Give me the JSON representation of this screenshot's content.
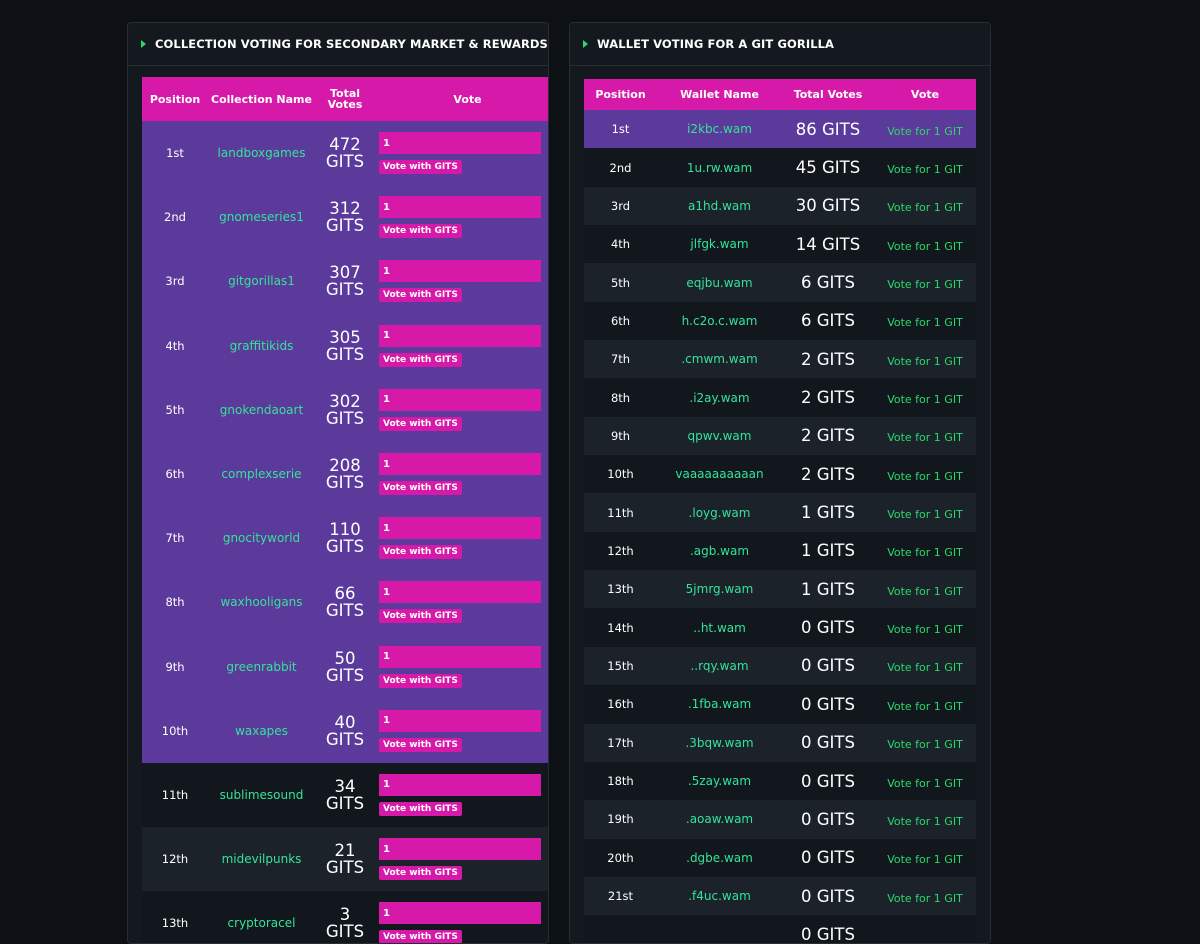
{
  "left_panel": {
    "title": "COLLECTION VOTING FOR SECONDARY MARKET & REWARDS",
    "headers": [
      "Position",
      "Collection Name",
      "Total Votes",
      "Vote"
    ],
    "rows": [
      {
        "position": "1st",
        "name": "landboxgames",
        "votes": "472",
        "unit": "GITS",
        "input": "1",
        "button": "Vote with GITS"
      },
      {
        "position": "2nd",
        "name": "gnomeseries1",
        "votes": "312",
        "unit": "GITS",
        "input": "1",
        "button": "Vote with GITS"
      },
      {
        "position": "3rd",
        "name": "gitgorillas1",
        "votes": "307",
        "unit": "GITS",
        "input": "1",
        "button": "Vote with GITS"
      },
      {
        "position": "4th",
        "name": "graffitikids",
        "votes": "305",
        "unit": "GITS",
        "input": "1",
        "button": "Vote with GITS"
      },
      {
        "position": "5th",
        "name": "gnokendaoart",
        "votes": "302",
        "unit": "GITS",
        "input": "1",
        "button": "Vote with GITS"
      },
      {
        "position": "6th",
        "name": "complexserie",
        "votes": "208",
        "unit": "GITS",
        "input": "1",
        "button": "Vote with GITS"
      },
      {
        "position": "7th",
        "name": "gnocityworld",
        "votes": "110",
        "unit": "GITS",
        "input": "1",
        "button": "Vote with GITS"
      },
      {
        "position": "8th",
        "name": "waxhooligans",
        "votes": "66",
        "unit": "GITS",
        "input": "1",
        "button": "Vote with GITS"
      },
      {
        "position": "9th",
        "name": "greenrabbit",
        "votes": "50",
        "unit": "GITS",
        "input": "1",
        "button": "Vote with GITS"
      },
      {
        "position": "10th",
        "name": "waxapes",
        "votes": "40",
        "unit": "GITS",
        "input": "1",
        "button": "Vote with GITS"
      },
      {
        "position": "11th",
        "name": "sublimesound",
        "votes": "34",
        "unit": "GITS",
        "input": "1",
        "button": "Vote with GITS"
      },
      {
        "position": "12th",
        "name": "midevilpunks",
        "votes": "21",
        "unit": "GITS",
        "input": "1",
        "button": "Vote with GITS"
      },
      {
        "position": "13th",
        "name": "cryptoracel",
        "votes": "3",
        "unit": "GITS",
        "input": "1",
        "button": "Vote with GITS"
      }
    ]
  },
  "right_panel": {
    "title": "WALLET VOTING FOR A GIT GORILLA",
    "headers": [
      "Position",
      "Wallet Name",
      "Total Votes",
      "Vote"
    ],
    "rows": [
      {
        "position": "1st",
        "name": "i2kbc.wam",
        "votes": "86 GITS",
        "action": "Vote for 1 GIT"
      },
      {
        "position": "2nd",
        "name": "1u.rw.wam",
        "votes": "45 GITS",
        "action": "Vote for 1 GIT"
      },
      {
        "position": "3rd",
        "name": "a1hd.wam",
        "votes": "30 GITS",
        "action": "Vote for 1 GIT"
      },
      {
        "position": "4th",
        "name": "jlfgk.wam",
        "votes": "14 GITS",
        "action": "Vote for 1 GIT"
      },
      {
        "position": "5th",
        "name": "eqjbu.wam",
        "votes": "6 GITS",
        "action": "Vote for 1 GIT"
      },
      {
        "position": "6th",
        "name": "h.c2o.c.wam",
        "votes": "6 GITS",
        "action": "Vote for 1 GIT"
      },
      {
        "position": "7th",
        "name": ".cmwm.wam",
        "votes": "2 GITS",
        "action": "Vote for 1 GIT"
      },
      {
        "position": "8th",
        "name": ".i2ay.wam",
        "votes": "2 GITS",
        "action": "Vote for 1 GIT"
      },
      {
        "position": "9th",
        "name": "qpwv.wam",
        "votes": "2 GITS",
        "action": "Vote for 1 GIT"
      },
      {
        "position": "10th",
        "name": "vaaaaaaaaaan",
        "votes": "2 GITS",
        "action": "Vote for 1 GIT"
      },
      {
        "position": "11th",
        "name": ".loyg.wam",
        "votes": "1 GITS",
        "action": "Vote for 1 GIT"
      },
      {
        "position": "12th",
        "name": ".agb.wam",
        "votes": "1 GITS",
        "action": "Vote for 1 GIT"
      },
      {
        "position": "13th",
        "name": "5jmrg.wam",
        "votes": "1 GITS",
        "action": "Vote for 1 GIT"
      },
      {
        "position": "14th",
        "name": "..ht.wam",
        "votes": "0 GITS",
        "action": "Vote for 1 GIT"
      },
      {
        "position": "15th",
        "name": "..rqy.wam",
        "votes": "0 GITS",
        "action": "Vote for 1 GIT"
      },
      {
        "position": "16th",
        "name": ".1fba.wam",
        "votes": "0 GITS",
        "action": "Vote for 1 GIT"
      },
      {
        "position": "17th",
        "name": ".3bqw.wam",
        "votes": "0 GITS",
        "action": "Vote for 1 GIT"
      },
      {
        "position": "18th",
        "name": ".5zay.wam",
        "votes": "0 GITS",
        "action": "Vote for 1 GIT"
      },
      {
        "position": "19th",
        "name": ".aoaw.wam",
        "votes": "0 GITS",
        "action": "Vote for 1 GIT"
      },
      {
        "position": "20th",
        "name": ".dgbe.wam",
        "votes": "0 GITS",
        "action": "Vote for 1 GIT"
      },
      {
        "position": "21st",
        "name": ".f4uc.wam",
        "votes": "0 GITS",
        "action": "Vote for 1 GIT"
      },
      {
        "position": "",
        "name": "",
        "votes": "0 GITS",
        "action": ""
      }
    ]
  },
  "colors": {
    "page_bg": "#0d1116",
    "panel_bg": "#13191f",
    "header_magenta": "#d619a8",
    "highlight_purple": "#5b3a9b",
    "name_green": "#34e39a",
    "vote_green": "#2bd86a"
  },
  "icons": {
    "panel_header_marker": "play-triangle-icon"
  }
}
